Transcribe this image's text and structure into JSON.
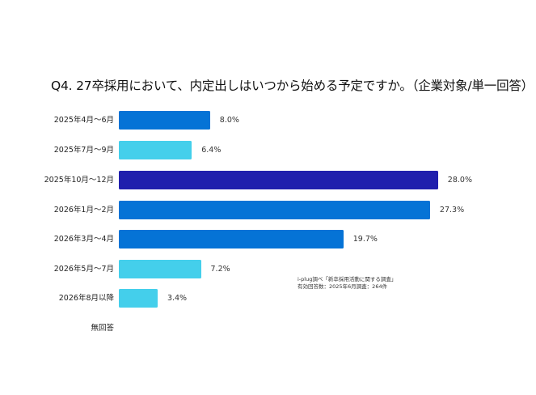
{
  "chart_data": {
    "type": "bar",
    "orientation": "horizontal",
    "title": "Q4. 27卒採用において、内定出しはいつから始める予定ですか。（企業対象/単一回答）",
    "xlabel": "",
    "ylabel": "",
    "unit": "%",
    "grid": false,
    "legend": null,
    "categories": [
      "2025年4月～6月",
      "2025年7月～9月",
      "2025年10月～12月",
      "2026年1月～2月",
      "2026年3月～4月",
      "2026年5月～7月",
      "2026年8月以降",
      "無回答"
    ],
    "values": [
      8.0,
      6.4,
      28.0,
      27.3,
      19.7,
      7.2,
      3.4,
      null
    ],
    "value_labels": [
      "8.0%",
      "6.4%",
      "28.0%",
      "27.3%",
      "19.7%",
      "7.2%",
      "3.4%",
      ""
    ],
    "bar_colors": [
      "#0573D6",
      "#44CFEB",
      "#201FAD",
      "#0573D6",
      "#0573D6",
      "#44CFEB",
      "#44CFEB",
      ""
    ],
    "annotations": [
      "i-plug調べ「新卒採用活動に関する調査」",
      "有効回答数：2025年6月調査：264件"
    ]
  },
  "note": {
    "line1": "i-plug調べ「新卒採用活動に関する調査」",
    "line2": "有効回答数：2025年6月調査：264件"
  },
  "colors": {
    "medium_blue": "#0573D6",
    "light_cyan": "#44CFEB",
    "dark_indigo": "#201FAD"
  }
}
